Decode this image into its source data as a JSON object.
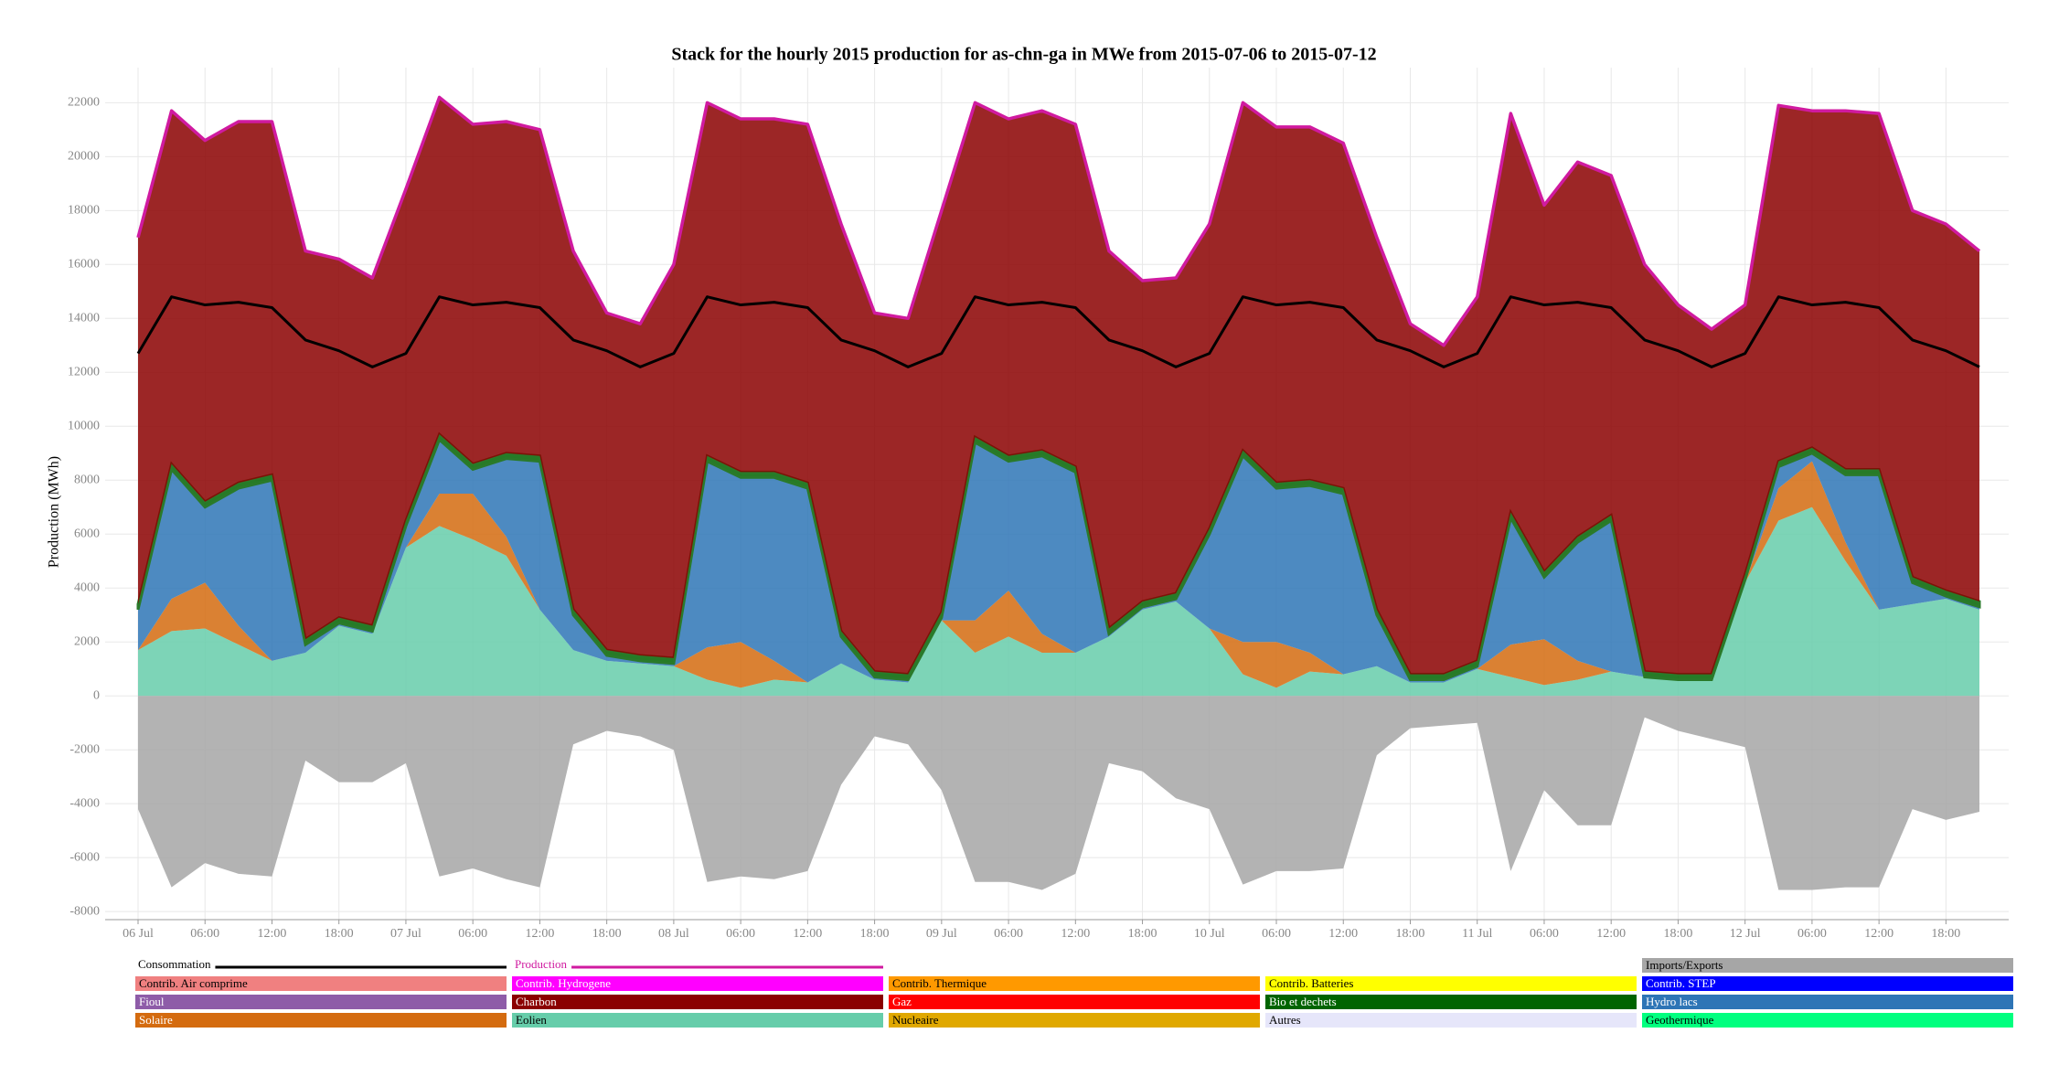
{
  "chart_data": {
    "type": "stacked-area",
    "title": "Stack for the hourly 2015 production for as-chn-ga in MWe from 2015-07-06 to 2015-07-12",
    "y_label": "Production (MWh)",
    "x": [
      "2015-07-06 00:00",
      "2015-07-06 03:00",
      "2015-07-06 06:00",
      "2015-07-06 09:00",
      "2015-07-06 12:00",
      "2015-07-06 15:00",
      "2015-07-06 18:00",
      "2015-07-06 21:00",
      "2015-07-07 00:00",
      "2015-07-07 03:00",
      "2015-07-07 06:00",
      "2015-07-07 09:00",
      "2015-07-07 12:00",
      "2015-07-07 15:00",
      "2015-07-07 18:00",
      "2015-07-07 21:00",
      "2015-07-08 00:00",
      "2015-07-08 03:00",
      "2015-07-08 06:00",
      "2015-07-08 09:00",
      "2015-07-08 12:00",
      "2015-07-08 15:00",
      "2015-07-08 18:00",
      "2015-07-08 21:00",
      "2015-07-09 00:00",
      "2015-07-09 03:00",
      "2015-07-09 06:00",
      "2015-07-09 09:00",
      "2015-07-09 12:00",
      "2015-07-09 15:00",
      "2015-07-09 18:00",
      "2015-07-09 21:00",
      "2015-07-10 00:00",
      "2015-07-10 03:00",
      "2015-07-10 06:00",
      "2015-07-10 09:00",
      "2015-07-10 12:00",
      "2015-07-10 15:00",
      "2015-07-10 18:00",
      "2015-07-10 21:00",
      "2015-07-11 00:00",
      "2015-07-11 03:00",
      "2015-07-11 06:00",
      "2015-07-11 09:00",
      "2015-07-11 12:00",
      "2015-07-11 15:00",
      "2015-07-11 18:00",
      "2015-07-11 21:00",
      "2015-07-12 00:00",
      "2015-07-12 03:00",
      "2015-07-12 06:00",
      "2015-07-12 09:00",
      "2015-07-12 12:00",
      "2015-07-12 15:00",
      "2015-07-12 18:00",
      "2015-07-12 21:00"
    ],
    "xticks": [
      {
        "value": "2015-07-06 00:00",
        "label": "06 Jul"
      },
      {
        "value": "2015-07-06 06:00",
        "label": "06:00"
      },
      {
        "value": "2015-07-06 12:00",
        "label": "12:00"
      },
      {
        "value": "2015-07-06 18:00",
        "label": "18:00"
      },
      {
        "value": "2015-07-07 00:00",
        "label": "07 Jul"
      },
      {
        "value": "2015-07-07 06:00",
        "label": "06:00"
      },
      {
        "value": "2015-07-07 12:00",
        "label": "12:00"
      },
      {
        "value": "2015-07-07 18:00",
        "label": "18:00"
      },
      {
        "value": "2015-07-08 00:00",
        "label": "08 Jul"
      },
      {
        "value": "2015-07-08 06:00",
        "label": "06:00"
      },
      {
        "value": "2015-07-08 12:00",
        "label": "12:00"
      },
      {
        "value": "2015-07-08 18:00",
        "label": "18:00"
      },
      {
        "value": "2015-07-09 00:00",
        "label": "09 Jul"
      },
      {
        "value": "2015-07-09 06:00",
        "label": "06:00"
      },
      {
        "value": "2015-07-09 12:00",
        "label": "12:00"
      },
      {
        "value": "2015-07-09 18:00",
        "label": "18:00"
      },
      {
        "value": "2015-07-10 00:00",
        "label": "10 Jul"
      },
      {
        "value": "2015-07-10 06:00",
        "label": "06:00"
      },
      {
        "value": "2015-07-10 12:00",
        "label": "12:00"
      },
      {
        "value": "2015-07-10 18:00",
        "label": "18:00"
      },
      {
        "value": "2015-07-11 00:00",
        "label": "11 Jul"
      },
      {
        "value": "2015-07-11 06:00",
        "label": "06:00"
      },
      {
        "value": "2015-07-11 12:00",
        "label": "12:00"
      },
      {
        "value": "2015-07-11 18:00",
        "label": "18:00"
      },
      {
        "value": "2015-07-12 00:00",
        "label": "12 Jul"
      },
      {
        "value": "2015-07-12 06:00",
        "label": "06:00"
      },
      {
        "value": "2015-07-12 12:00",
        "label": "12:00"
      },
      {
        "value": "2015-07-12 18:00",
        "label": "18:00"
      }
    ],
    "ylim": [
      -8300,
      23300
    ],
    "yticks": [
      -8000,
      -6000,
      -4000,
      -2000,
      0,
      2000,
      4000,
      6000,
      8000,
      10000,
      12000,
      14000,
      16000,
      18000,
      20000,
      22000
    ],
    "grid": true,
    "series": [
      {
        "name": "Consommation",
        "color": "#000000",
        "kind": "line",
        "values": [
          12700,
          14800,
          14500,
          14600,
          14400,
          13200,
          12800,
          12200,
          12700,
          14800,
          14500,
          14600,
          14400,
          13200,
          12800,
          12200,
          12700,
          14800,
          14500,
          14600,
          14400,
          13200,
          12800,
          12200,
          12700,
          14800,
          14500,
          14600,
          14400,
          13200,
          12800,
          12200,
          12700,
          14800,
          14500,
          14600,
          14400,
          13200,
          12800,
          12200,
          12700,
          14800,
          14500,
          14600,
          14400,
          13200,
          12800,
          12200,
          12700,
          14800,
          14500,
          14600,
          14400,
          13200,
          12800,
          12200
        ]
      },
      {
        "name": "Production",
        "color": "#d01aa0",
        "kind": "line",
        "values": [
          17000,
          21700,
          20600,
          21300,
          21300,
          16500,
          16200,
          15500,
          18800,
          22200,
          21200,
          21300,
          21000,
          16500,
          14200,
          13800,
          16000,
          22000,
          21400,
          21400,
          21200,
          17500,
          14200,
          14000,
          18000,
          22000,
          21400,
          21700,
          21200,
          16500,
          15400,
          15500,
          17500,
          22000,
          21100,
          21100,
          20500,
          17000,
          13800,
          13000,
          14800,
          21600,
          18200,
          19800,
          19300,
          16000,
          14500,
          13600,
          14500,
          21900,
          21700,
          21700,
          21600,
          18000,
          17500,
          16500
        ]
      },
      {
        "name": "Imports/Exports",
        "color": "#a6a6a6",
        "kind": "area",
        "values": [
          -4200,
          -7100,
          -6200,
          -6600,
          -6700,
          -2400,
          -3200,
          -3200,
          -2500,
          -6700,
          -6400,
          -6800,
          -7100,
          -1800,
          -1300,
          -1500,
          -2000,
          -6900,
          -6700,
          -6800,
          -6500,
          -3300,
          -1500,
          -1800,
          -3500,
          -6900,
          -6900,
          -7200,
          -6600,
          -2500,
          -2800,
          -3800,
          -4200,
          -7000,
          -6500,
          -6500,
          -6400,
          -2200,
          -1200,
          -1100,
          -1000,
          -6500,
          -3500,
          -4800,
          -4800,
          -800,
          -1300,
          -1600,
          -1900,
          -7200,
          -7200,
          -7100,
          -7100,
          -4200,
          -4600,
          -4300
        ]
      },
      {
        "name": "Contrib. Air comprime",
        "color": "#f08080"
      },
      {
        "name": "Contrib. Hydrogene",
        "color": "#ff00ff"
      },
      {
        "name": "Contrib. Thermique",
        "color": "#ff9900"
      },
      {
        "name": "Contrib. Batteries",
        "color": "#ffff00"
      },
      {
        "name": "Contrib. STEP",
        "color": "#0000ff"
      },
      {
        "name": "Fioul",
        "color": "#8e5ca8"
      },
      {
        "name": "Charbon",
        "color": "#8b0000",
        "kind": "area",
        "values": [
          13600,
          13100,
          13400,
          13400,
          13100,
          14400,
          13300,
          12900,
          12300,
          12500,
          12600,
          12300,
          12100,
          13300,
          12500,
          12300,
          14600,
          13100,
          13100,
          13100,
          13300,
          15100,
          13300,
          13200,
          14900,
          12400,
          12500,
          12600,
          12700,
          14000,
          11900,
          11700,
          11300,
          12900,
          13200,
          13100,
          12800,
          13800,
          13000,
          12200,
          13500,
          14800,
          13600,
          13900,
          12600,
          15100,
          13700,
          12800,
          10000,
          13200,
          12500,
          13300,
          13200,
          13600,
          13600,
          13000
        ]
      },
      {
        "name": "Gaz",
        "color": "#ff0000"
      },
      {
        "name": "Bio et dechets",
        "color": "#006400",
        "kind": "area",
        "values": [
          200,
          200,
          200,
          200,
          200,
          200,
          200,
          200,
          200,
          200,
          200,
          200,
          200,
          200,
          200,
          200,
          200,
          200,
          200,
          200,
          200,
          200,
          200,
          200,
          200,
          200,
          200,
          200,
          200,
          200,
          200,
          200,
          200,
          200,
          200,
          200,
          200,
          200,
          200,
          200,
          200,
          200,
          200,
          200,
          200,
          200,
          200,
          200,
          200,
          200,
          200,
          200,
          200,
          200,
          200,
          200
        ]
      },
      {
        "name": "Hydro lacs",
        "color": "#2e75b6",
        "kind": "area",
        "values": [
          1500,
          4800,
          2800,
          5100,
          6700,
          300,
          100,
          100,
          800,
          2000,
          900,
          2900,
          5500,
          1300,
          200,
          100,
          100,
          6900,
          6100,
          6800,
          7200,
          1000,
          100,
          100,
          100,
          6600,
          4800,
          6600,
          6700,
          100,
          100,
          100,
          3500,
          6900,
          5700,
          6200,
          6700,
          1900,
          100,
          100,
          100,
          4700,
          2300,
          4400,
          5600,
          0,
          0,
          0,
          100,
          800,
          300,
          2500,
          5000,
          800,
          100,
          100
        ]
      },
      {
        "name": "Solaire",
        "color": "#d46b0f",
        "kind": "area",
        "values": [
          0,
          1200,
          1700,
          700,
          0,
          0,
          0,
          0,
          0,
          1200,
          1700,
          700,
          0,
          0,
          0,
          0,
          0,
          1200,
          1700,
          700,
          0,
          0,
          0,
          0,
          0,
          1200,
          1700,
          700,
          0,
          0,
          0,
          0,
          0,
          1200,
          1700,
          700,
          0,
          0,
          0,
          0,
          0,
          1200,
          1700,
          700,
          0,
          0,
          0,
          0,
          0,
          1200,
          1700,
          700,
          0,
          0,
          0,
          0
        ]
      },
      {
        "name": "Eolien",
        "color": "#66cdaa",
        "kind": "area",
        "values": [
          1700,
          2400,
          2500,
          1900,
          1300,
          1600,
          2600,
          2300,
          5500,
          6300,
          5800,
          5200,
          3200,
          1700,
          1300,
          1200,
          1100,
          600,
          300,
          600,
          500,
          1200,
          600,
          500,
          2800,
          1600,
          2200,
          1600,
          1600,
          2200,
          3200,
          3500,
          2500,
          800,
          300,
          900,
          800,
          1100,
          500,
          500,
          1000,
          700,
          400,
          600,
          900,
          700,
          600,
          600,
          4200,
          6500,
          7000,
          5000,
          3200,
          3400,
          3600,
          3200
        ]
      },
      {
        "name": "Nucleaire",
        "color": "#e0a800"
      },
      {
        "name": "Autres",
        "color": "#e6e6fa"
      },
      {
        "name": "Geothermique",
        "color": "#00ff7f"
      }
    ]
  }
}
